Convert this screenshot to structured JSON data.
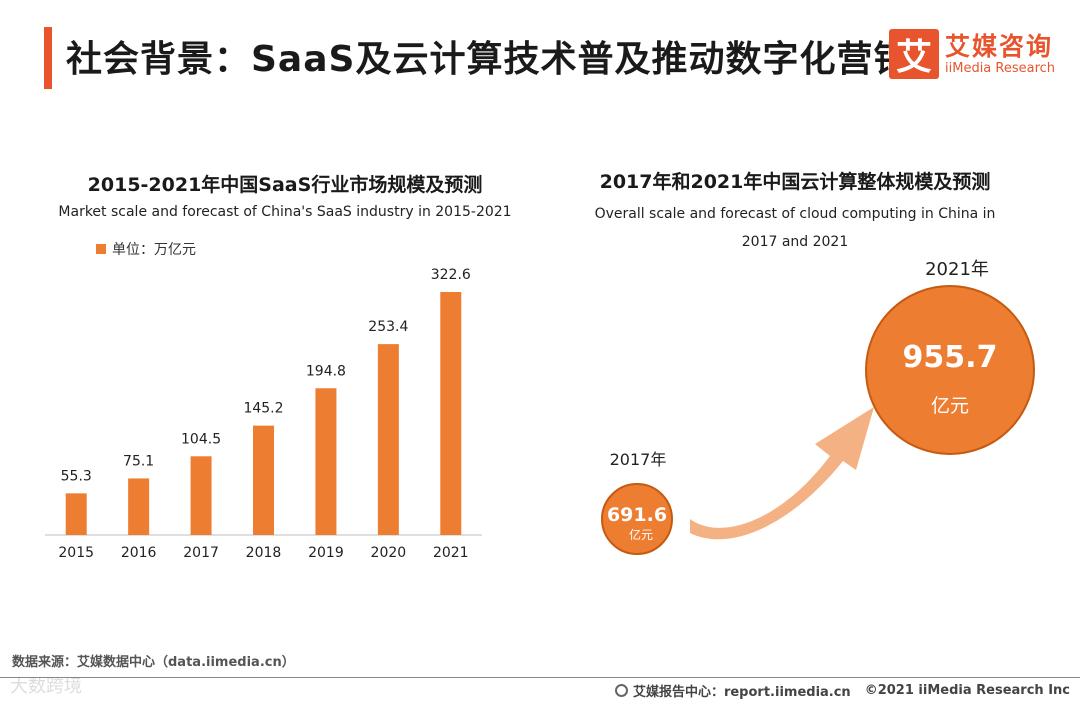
{
  "header": {
    "title": "社会背景：SaaS及云计算技术普及推动数字化营销",
    "logo_mark": "艾",
    "logo_cn": "艾媒咨询",
    "logo_en": "iiMedia Research",
    "accent_color": "#e8542e"
  },
  "chart_data": [
    {
      "type": "bar",
      "title": "2015-2021年中国SaaS行业市场规模及预测",
      "subtitle": "Market scale and forecast of China's SaaS industry in 2015-2021",
      "legend": "单位：万亿元",
      "categories": [
        "2015",
        "2016",
        "2017",
        "2018",
        "2019",
        "2020",
        "2021"
      ],
      "values": [
        55.3,
        75.1,
        104.5,
        145.2,
        194.8,
        253.4,
        322.6
      ],
      "value_labels": [
        "55.3",
        "75.1",
        "104.5",
        "145.2",
        "194.8",
        "253.4",
        "322.6"
      ],
      "ylim": [
        0,
        330
      ],
      "color": "#ed7d31"
    },
    {
      "type": "bubble",
      "title": "2017年和2021年中国云计算整体规模及预测",
      "subtitle": "Overall scale and forecast of cloud computing in China in 2017 and 2021",
      "points": [
        {
          "year": "2017年",
          "value": 691.6,
          "value_label": "691.6",
          "unit": "亿元"
        },
        {
          "year": "2021年",
          "value": 955.7,
          "value_label": "955.7",
          "unit": "亿元"
        }
      ],
      "bubble_color": "#ed7d31",
      "arrow_color": "#f4b183"
    }
  ],
  "footer": {
    "source": "数据来源：艾媒数据中心（data.iimedia.cn）",
    "report": "艾媒报告中心：report.iimedia.cn",
    "copyright": "©2021  iiMedia Research  Inc",
    "watermark": "大数跨境"
  }
}
